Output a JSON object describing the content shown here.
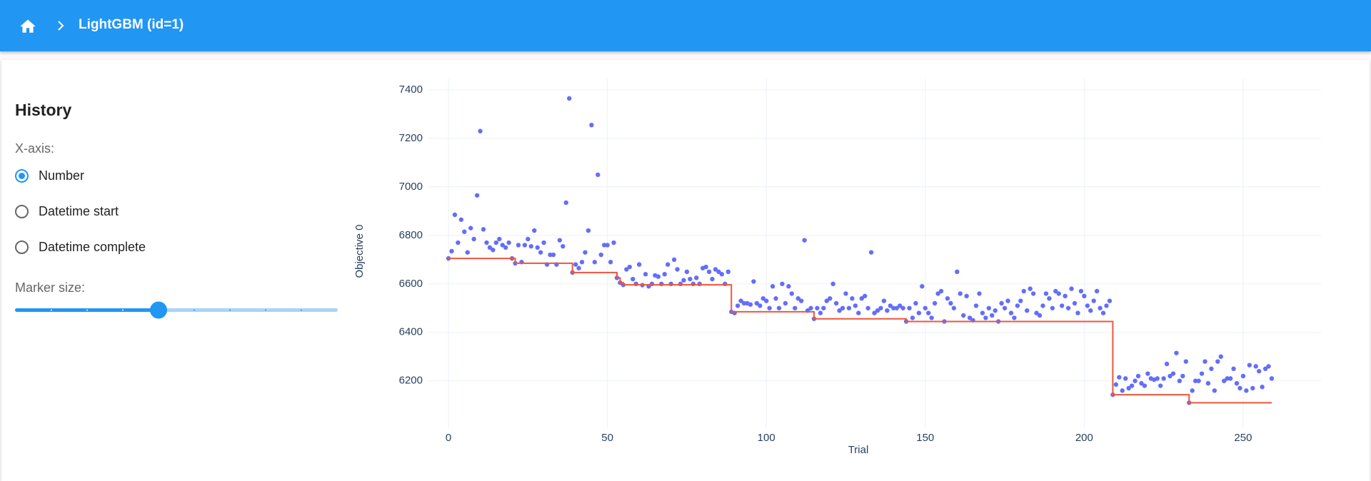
{
  "header": {
    "title": "LightGBM (id=1)"
  },
  "sidebar": {
    "title": "History",
    "x_axis_label": "X-axis:",
    "options": [
      "Number",
      "Datetime start",
      "Datetime complete"
    ],
    "marker_size_label": "Marker size:"
  },
  "chart_data": {
    "type": "scatter",
    "xlabel": "Trial",
    "ylabel": "Objective 0",
    "xlim": [
      -6.3,
      274.5
    ],
    "ylim": [
      6005,
      7447
    ],
    "xticks": [
      0,
      50,
      100,
      150,
      200,
      250
    ],
    "yticks": [
      6200,
      6400,
      6600,
      6800,
      7000,
      7200,
      7400
    ],
    "grid": true,
    "series": [
      {
        "color": "#636efa",
        "x": [
          0,
          1,
          2,
          3,
          4,
          5,
          6,
          7,
          8,
          9,
          10,
          11,
          12,
          13,
          14,
          15,
          16,
          17,
          18,
          19,
          20,
          21,
          22,
          23,
          24,
          25,
          26,
          27,
          28,
          29,
          30,
          31,
          32,
          33,
          34,
          35,
          36,
          37,
          38,
          39,
          40,
          41,
          42,
          43,
          44,
          45,
          46,
          47,
          48,
          49,
          50,
          51,
          52,
          53,
          54,
          55,
          56,
          57,
          58,
          59,
          60,
          61,
          62,
          63,
          64,
          65,
          66,
          67,
          68,
          69,
          70,
          71,
          72,
          73,
          74,
          75,
          76,
          77,
          78,
          79,
          80,
          81,
          82,
          83,
          84,
          85,
          86,
          87,
          88,
          89,
          90,
          91,
          92,
          93,
          94,
          95,
          96,
          97,
          98,
          99,
          100,
          101,
          102,
          103,
          104,
          105,
          106,
          107,
          108,
          109,
          110,
          111,
          112,
          113,
          114,
          115,
          116,
          117,
          118,
          119,
          120,
          121,
          122,
          123,
          124,
          125,
          126,
          127,
          128,
          129,
          130,
          131,
          132,
          133,
          134,
          135,
          136,
          137,
          138,
          139,
          140,
          141,
          142,
          143,
          144,
          145,
          146,
          147,
          148,
          149,
          150,
          151,
          152,
          153,
          154,
          155,
          156,
          157,
          158,
          159,
          160,
          161,
          162,
          163,
          164,
          165,
          166,
          167,
          168,
          169,
          170,
          171,
          172,
          173,
          174,
          175,
          176,
          177,
          178,
          179,
          180,
          181,
          182,
          183,
          184,
          185,
          186,
          187,
          188,
          189,
          190,
          191,
          192,
          193,
          194,
          195,
          196,
          197,
          198,
          199,
          200,
          201,
          202,
          203,
          204,
          205,
          206,
          207,
          208,
          209,
          210,
          211,
          212,
          213,
          214,
          215,
          216,
          217,
          218,
          219,
          220,
          221,
          222,
          223,
          224,
          225,
          226,
          227,
          228,
          229,
          230,
          231,
          232,
          233,
          234,
          235,
          236,
          237,
          238,
          239,
          240,
          241,
          242,
          243,
          244,
          245,
          246,
          247,
          248,
          249,
          250,
          251,
          252,
          253,
          254,
          255,
          256,
          257,
          258,
          259
        ],
        "values": [
          6705,
          6735,
          6885,
          6770,
          6865,
          6815,
          6730,
          6830,
          6785,
          6965,
          7230,
          6825,
          6770,
          6750,
          6740,
          6770,
          6785,
          6760,
          6750,
          6770,
          6705,
          6685,
          6760,
          6690,
          6760,
          6785,
          6755,
          6820,
          6750,
          6730,
          6770,
          6680,
          6720,
          6720,
          6680,
          6780,
          6755,
          6935,
          7365,
          6647,
          6680,
          6665,
          6690,
          6730,
          6820,
          7255,
          6690,
          7050,
          6720,
          6760,
          6760,
          6690,
          6770,
          6625,
          6605,
          6596,
          6660,
          6670,
          6620,
          6600,
          6680,
          6595,
          6640,
          6590,
          6600,
          6635,
          6630,
          6600,
          6640,
          6680,
          6600,
          6700,
          6660,
          6600,
          6615,
          6650,
          6620,
          6600,
          6625,
          6600,
          6665,
          6670,
          6650,
          6620,
          6660,
          6650,
          6640,
          6600,
          6650,
          6485,
          6480,
          6510,
          6530,
          6520,
          6520,
          6515,
          6610,
          6520,
          6510,
          6540,
          6530,
          6500,
          6590,
          6540,
          6500,
          6600,
          6520,
          6590,
          6560,
          6500,
          6540,
          6530,
          6780,
          6490,
          6500,
          6456,
          6500,
          6480,
          6500,
          6530,
          6540,
          6600,
          6520,
          6490,
          6500,
          6560,
          6500,
          6540,
          6510,
          6480,
          6540,
          6550,
          6500,
          6730,
          6480,
          6490,
          6500,
          6530,
          6490,
          6510,
          6500,
          6500,
          6510,
          6500,
          6445,
          6500,
          6460,
          6520,
          6480,
          6590,
          6500,
          6480,
          6460,
          6520,
          6560,
          6570,
          6445,
          6540,
          6520,
          6500,
          6650,
          6560,
          6470,
          6550,
          6460,
          6450,
          6510,
          6560,
          6480,
          6460,
          6500,
          6470,
          6490,
          6445,
          6520,
          6500,
          6530,
          6480,
          6460,
          6510,
          6530,
          6570,
          6490,
          6580,
          6560,
          6480,
          6470,
          6510,
          6560,
          6540,
          6500,
          6570,
          6560,
          6510,
          6550,
          6500,
          6580,
          6520,
          6480,
          6570,
          6550,
          6510,
          6490,
          6530,
          6570,
          6500,
          6480,
          6510,
          6530,
          6143,
          6185,
          6215,
          6160,
          6210,
          6170,
          6180,
          6200,
          6220,
          6190,
          6180,
          6230,
          6210,
          6205,
          6210,
          6180,
          6210,
          6270,
          6220,
          6230,
          6315,
          6200,
          6220,
          6280,
          6110,
          6160,
          6200,
          6200,
          6230,
          6280,
          6190,
          6250,
          6160,
          6280,
          6300,
          6200,
          6210,
          6210,
          6250,
          6190,
          6170,
          6220,
          6160,
          6265,
          6170,
          6260,
          6240,
          6175,
          6250,
          6260,
          6210
        ]
      },
      {
        "type": "step",
        "color": "#ef553b",
        "x": [
          0,
          21,
          39,
          53,
          54,
          55,
          89,
          115,
          144,
          209,
          233,
          259
        ],
        "values": [
          6705,
          6685,
          6647,
          6625,
          6605,
          6596,
          6485,
          6456,
          6445,
          6143,
          6110,
          6110
        ]
      }
    ]
  }
}
